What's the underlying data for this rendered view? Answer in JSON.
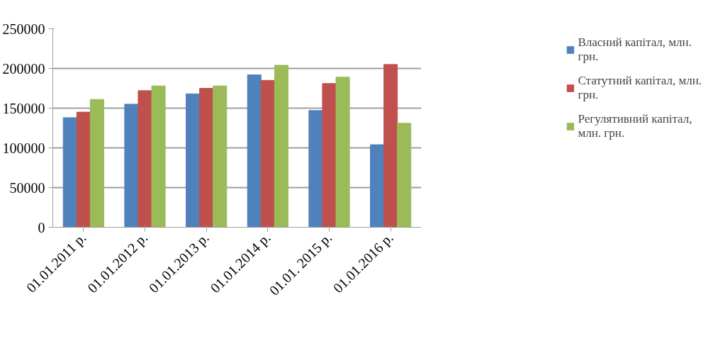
{
  "chart_data": {
    "type": "bar",
    "categories": [
      "01.01.2011 р.",
      "01.01.2012 р.",
      "01.01.2013 р.",
      "01.01.2014 р.",
      "01.01. 2015 р.",
      "01.01.2016 р."
    ],
    "series": [
      {
        "name": "Власний капітал, млн. грн.",
        "color": "#4f81bd",
        "values": [
          138000,
          155000,
          168000,
          192000,
          147000,
          104000
        ]
      },
      {
        "name": "Статутний капітал, млн. грн.",
        "color": "#c0504d",
        "values": [
          145000,
          172000,
          175000,
          185000,
          181000,
          205000
        ]
      },
      {
        "name": "Регулятивний капітал, млн. грн.",
        "color": "#9bbb59",
        "values": [
          161000,
          178000,
          178000,
          204000,
          189000,
          131000
        ]
      }
    ],
    "ylim": [
      0,
      250000
    ],
    "yticks": [
      0,
      50000,
      100000,
      150000,
      200000,
      250000
    ],
    "grid": "y",
    "legend": "right"
  }
}
